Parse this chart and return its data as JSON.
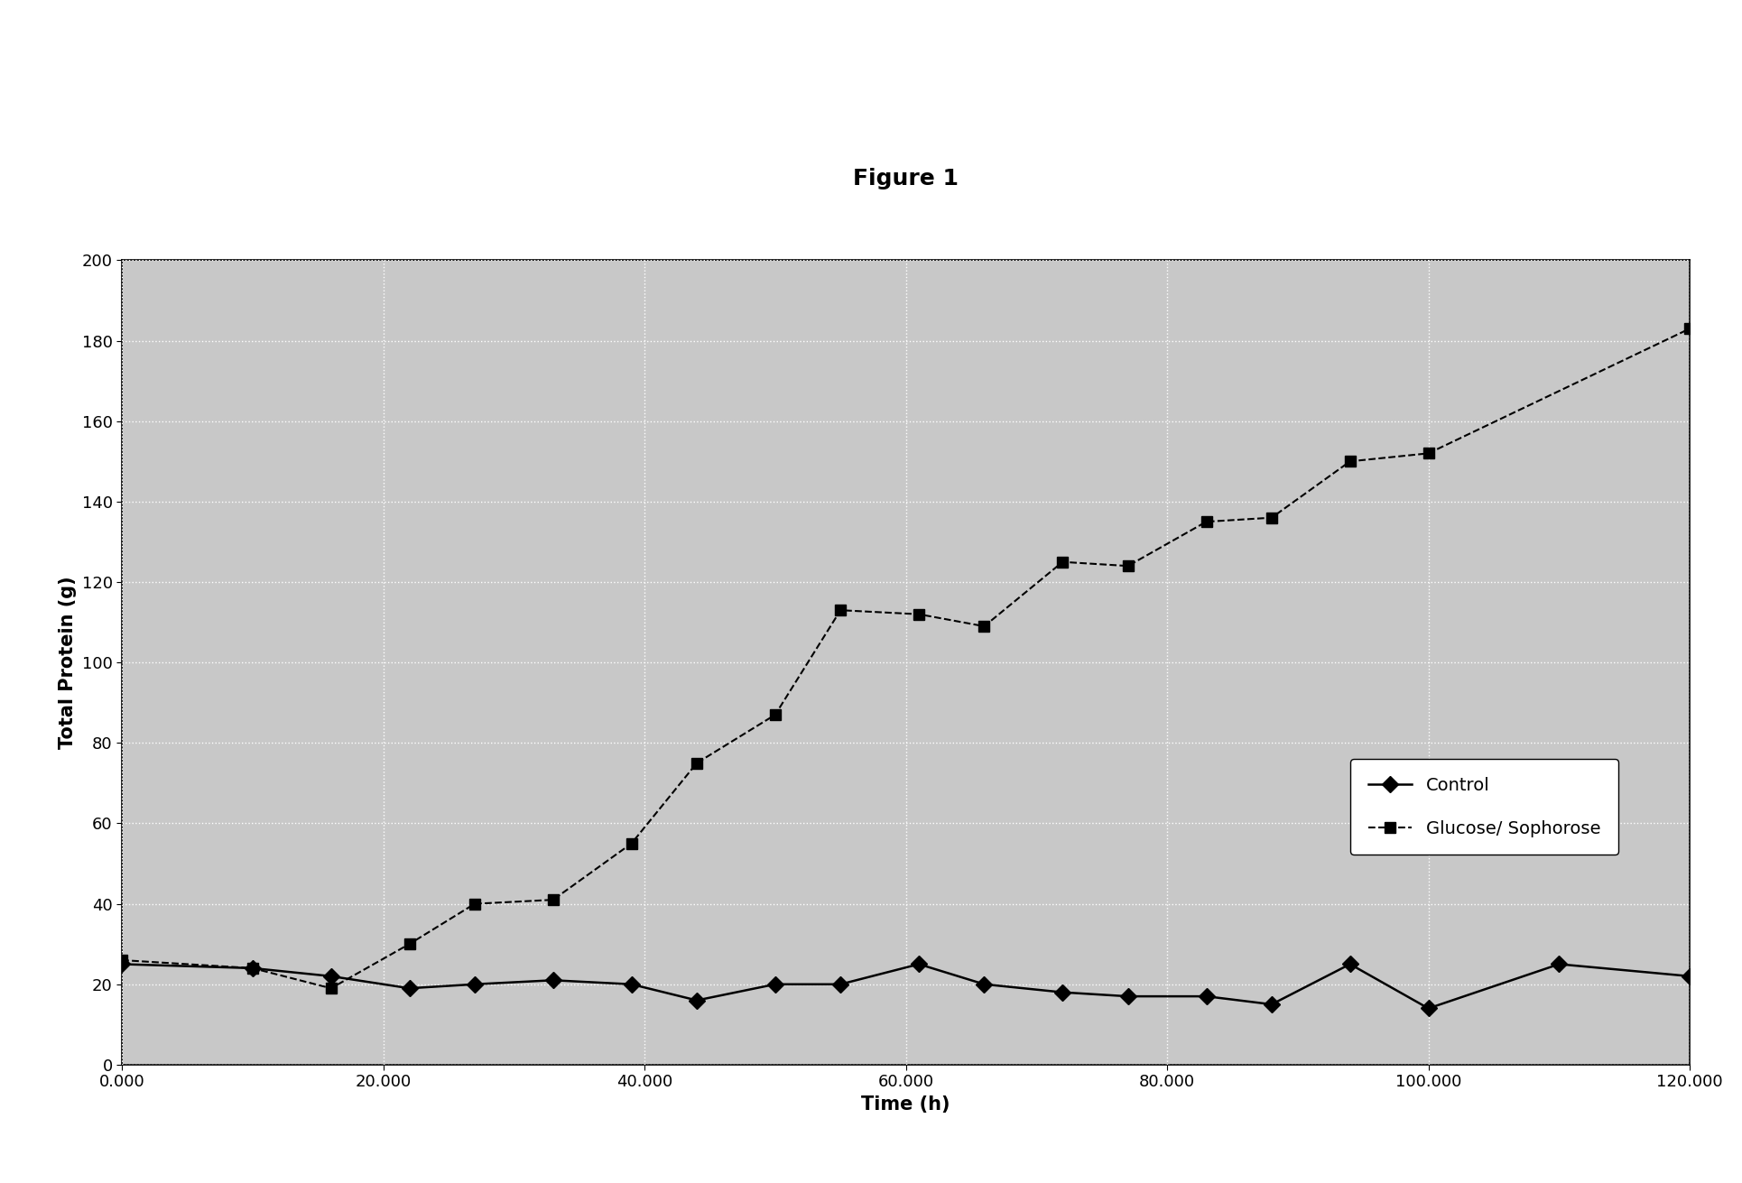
{
  "title": "Figure 1",
  "xlabel": "Time (h)",
  "ylabel": "Total Protein (g)",
  "xlim": [
    0,
    120000
  ],
  "ylim": [
    0,
    200
  ],
  "xticks": [
    0,
    20000,
    40000,
    60000,
    80000,
    100000,
    120000
  ],
  "yticks": [
    0,
    20,
    40,
    60,
    80,
    100,
    120,
    140,
    160,
    180,
    200
  ],
  "control_x": [
    0,
    10000,
    16000,
    22000,
    27000,
    33000,
    39000,
    44000,
    50000,
    55000,
    61000,
    66000,
    72000,
    77000,
    83000,
    88000,
    94000,
    100000,
    110000,
    120000
  ],
  "control_y": [
    25,
    24,
    22,
    19,
    20,
    21,
    20,
    16,
    20,
    20,
    25,
    20,
    18,
    17,
    17,
    15,
    25,
    14,
    25,
    22
  ],
  "glucose_x": [
    0,
    10000,
    16000,
    22000,
    27000,
    33000,
    39000,
    44000,
    50000,
    55000,
    61000,
    66000,
    72000,
    77000,
    83000,
    88000,
    94000,
    100000,
    120000
  ],
  "glucose_y": [
    26,
    24,
    19,
    30,
    40,
    41,
    55,
    75,
    87,
    113,
    112,
    109,
    125,
    124,
    135,
    136,
    150,
    152,
    183
  ],
  "control_color": "#000000",
  "glucose_color": "#000000",
  "control_label": "Control",
  "glucose_label": "Glucose/ Sophorose",
  "background_color": "#c8c8c8",
  "grid_color": "#ffffff",
  "title_fontsize": 18,
  "axis_label_fontsize": 15,
  "tick_fontsize": 13,
  "legend_fontsize": 14
}
